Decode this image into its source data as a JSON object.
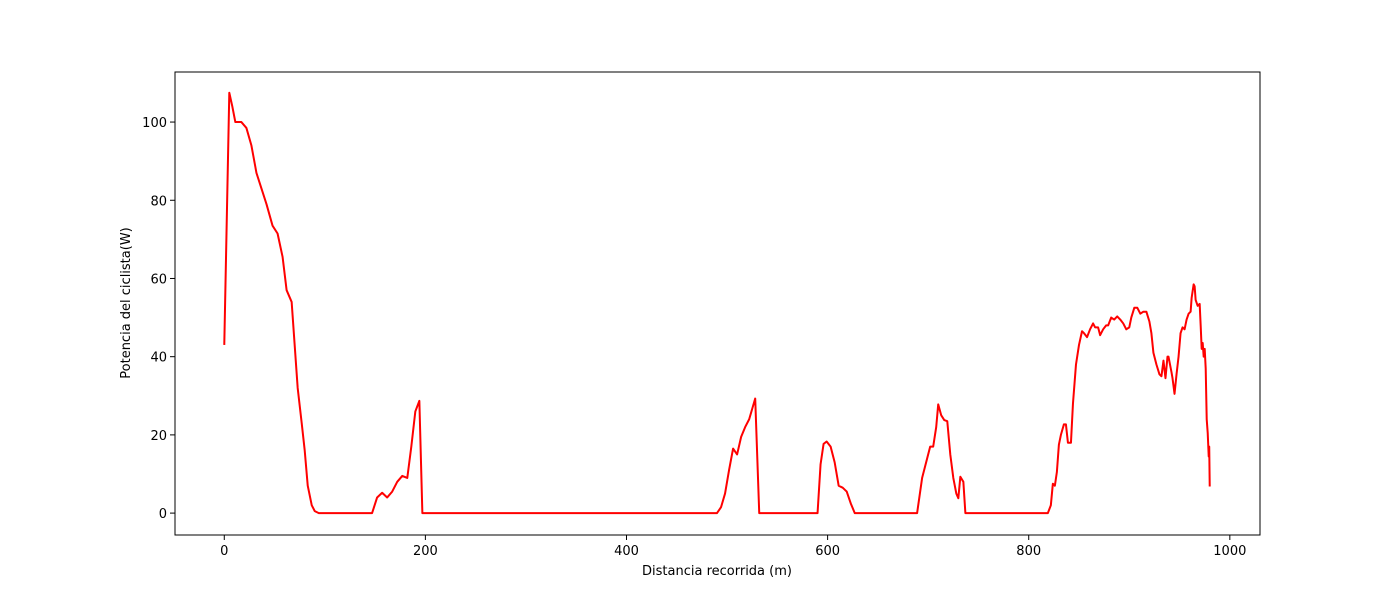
{
  "chart_data": {
    "type": "line",
    "xlabel": "Distancia recorrida (m)",
    "ylabel": "Potencia del ciclista(W)",
    "xlim": [
      -49,
      1030
    ],
    "ylim": [
      -5.6,
      112.8
    ],
    "xticks": [
      0,
      200,
      400,
      600,
      800,
      1000
    ],
    "yticks": [
      0,
      20,
      40,
      60,
      80,
      100
    ],
    "grid": false,
    "series": [
      {
        "color": "#ff0000",
        "x": [
          0,
          5,
          8,
          11,
          17,
          22,
          27,
          32,
          37,
          42,
          48,
          53,
          58,
          62,
          67,
          70,
          73,
          77,
          80,
          83,
          87,
          90,
          94,
          147,
          152,
          157,
          162,
          167,
          172,
          177,
          182,
          186,
          190,
          194,
          197,
          490,
          494,
          498,
          502,
          506,
          510,
          514,
          518,
          522,
          528,
          532,
          590,
          593,
          596,
          599,
          603,
          607,
          611,
          615,
          619,
          623,
          627,
          689,
          694,
          699,
          702,
          705,
          708,
          710,
          713,
          716,
          719,
          722,
          725,
          728,
          730,
          732,
          735,
          737,
          819,
          822,
          824,
          826,
          828,
          830,
          832,
          835,
          837,
          839,
          842,
          844,
          847,
          850,
          853,
          855,
          858,
          861,
          864,
          866,
          869,
          871,
          874,
          877,
          879,
          882,
          885,
          888,
          891,
          894,
          897,
          900,
          902,
          905,
          908,
          911,
          914,
          917,
          920,
          922,
          924,
          927,
          930,
          932,
          934,
          936,
          938,
          939,
          942,
          943,
          945,
          947,
          949,
          951,
          953,
          955,
          957,
          959,
          961,
          962,
          964,
          965,
          966,
          968,
          970,
          971,
          972,
          973,
          974,
          975,
          976,
          977,
          978,
          979,
          979.5,
          980
        ],
        "values": [
          43,
          107.5,
          104,
          100,
          100,
          98.5,
          94,
          87,
          83,
          79,
          73.5,
          71.5,
          65.5,
          57,
          54,
          43,
          32,
          23,
          16,
          7,
          2,
          0.5,
          0,
          0,
          4,
          5.2,
          4,
          5.5,
          8,
          9.5,
          9,
          17,
          26,
          28.7,
          0,
          0,
          1.5,
          5,
          11,
          16.5,
          15,
          19.5,
          22,
          24,
          29.3,
          0,
          0,
          12.5,
          17.7,
          18.3,
          17,
          13,
          7,
          6.5,
          5.5,
          2.5,
          0,
          0,
          9,
          14,
          17,
          17,
          22,
          27.8,
          25,
          23.8,
          23.5,
          15,
          9,
          5,
          3.8,
          9.3,
          8,
          0,
          0,
          2,
          7.5,
          7,
          10.5,
          17.5,
          20,
          22.7,
          22.7,
          18,
          18,
          28,
          38,
          43,
          46.5,
          46,
          45,
          47,
          48.5,
          47.5,
          47.5,
          45.5,
          47,
          48,
          48,
          50,
          49.5,
          50.3,
          49.5,
          48.5,
          47,
          47.5,
          50,
          52.5,
          52.5,
          51,
          51.5,
          51.5,
          49,
          46,
          41,
          38,
          35.5,
          35,
          39,
          34.5,
          40,
          40,
          36,
          34.5,
          30.5,
          35.5,
          40,
          46,
          47.5,
          47,
          49.5,
          51,
          51.5,
          55,
          58.5,
          58,
          54.5,
          53,
          53.5,
          48,
          42,
          43.5,
          40,
          42,
          37,
          24,
          20.5,
          14.5,
          17,
          6.8
        ]
      }
    ]
  }
}
